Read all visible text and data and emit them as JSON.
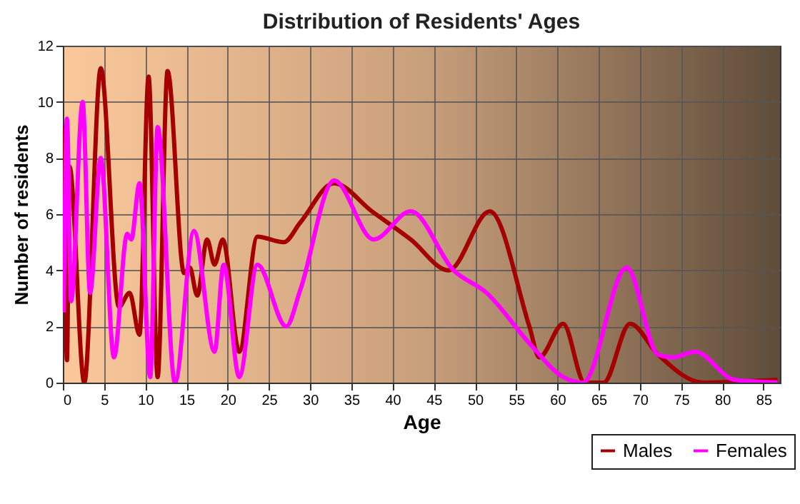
{
  "chart_data": {
    "type": "line",
    "title": "Distribution of Residents' Ages",
    "xlabel": "Age",
    "ylabel": "Number of residents",
    "xlim": [
      0,
      87
    ],
    "xticks": [
      0,
      5,
      10,
      15,
      20,
      25,
      30,
      35,
      40,
      45,
      50,
      55,
      60,
      65,
      70,
      75,
      80,
      85
    ],
    "ylim": [
      0,
      12
    ],
    "yticks": [
      0,
      2,
      4,
      6,
      8,
      10,
      12
    ],
    "grid": true,
    "legend": "bottom right",
    "series": [
      {
        "name": "Males",
        "color": "#a50000",
        "x": [
          0.1,
          0.5,
          0.8,
          2.6,
          4.6,
          6.8,
          8.1,
          9.3,
          10.4,
          11.5,
          12.7,
          14.7,
          15.4,
          16.3,
          17.5,
          18.4,
          19.4,
          21.4,
          23.6,
          26.8,
          28.8,
          32.9,
          37.5,
          42.2,
          46.8,
          51.8,
          56.6,
          57.8,
          60.7,
          63.3,
          65.6,
          68.8,
          72.2,
          77.7,
          86.7
        ],
        "values": [
          9.1,
          0.8,
          7.7,
          0,
          11.2,
          2.7,
          3.2,
          1.7,
          10.9,
          0.2,
          11.1,
          3.9,
          4.1,
          3.1,
          5.1,
          4.2,
          5.1,
          1.1,
          5.2,
          5.0,
          5.7,
          7.1,
          6.1,
          5.1,
          4.0,
          6.1,
          2.0,
          0.9,
          2.1,
          0,
          0,
          2.1,
          1.0,
          0,
          0.1
        ]
      },
      {
        "name": "Females",
        "color": "#ff00ff",
        "x": [
          0.1,
          0.5,
          1.0,
          2.4,
          3.3,
          4.6,
          6.2,
          7.8,
          8.3,
          9.3,
          10.6,
          11.5,
          13.6,
          15.9,
          18.4,
          19.5,
          21.4,
          23.6,
          27.1,
          28.8,
          32.9,
          37.7,
          42.2,
          47.4,
          51.4,
          56.6,
          60.7,
          63.1,
          68.4,
          72.2,
          74.0,
          76.7,
          81.5,
          86.7
        ],
        "values": [
          2.5,
          9.4,
          2.9,
          10.0,
          3.2,
          8.0,
          0.9,
          5.3,
          5.1,
          7.1,
          0.2,
          9.1,
          0,
          5.4,
          1.1,
          4.2,
          0.2,
          4.2,
          2.0,
          3.3,
          7.2,
          5.1,
          6.1,
          4.0,
          3.2,
          1.4,
          0.2,
          0,
          4.1,
          1.0,
          0.9,
          1.1,
          0.1,
          0
        ]
      }
    ]
  }
}
